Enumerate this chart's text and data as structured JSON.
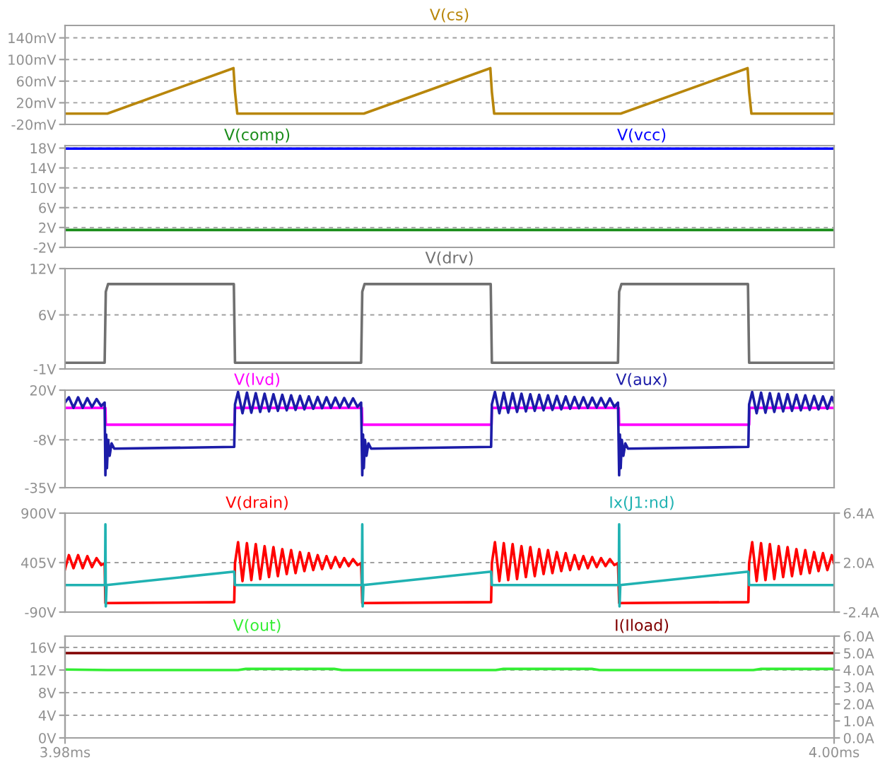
{
  "chart_data": [
    {
      "type": "line",
      "legend": "top",
      "grid": "y",
      "tick_labels": "y",
      "xlim": [
        3.98,
        4.0
      ],
      "ylim": [
        -20,
        163
      ],
      "yticks": [
        {
          "value": -20,
          "label": "-20mV"
        },
        {
          "value": 20,
          "label": "20mV"
        },
        {
          "value": 60,
          "label": "60mV"
        },
        {
          "value": 100,
          "label": "100mV"
        },
        {
          "value": 140,
          "label": "140mV"
        }
      ],
      "series": [
        {
          "name": "V(cs)",
          "color": "#b8860b",
          "x": [
            3.98,
            3.9811,
            3.98438,
            3.98442,
            3.98448,
            3.98777,
            3.99106,
            3.9911,
            3.99116,
            3.99445,
            3.99775,
            3.99779,
            3.99785,
            4.0
          ],
          "values": [
            0,
            0,
            84,
            40,
            0,
            0,
            84,
            40,
            0,
            0,
            84,
            40,
            0,
            0
          ]
        }
      ]
    },
    {
      "type": "line",
      "legend": "top",
      "grid": "y",
      "tick_labels": "y",
      "xlim": [
        3.98,
        4.0
      ],
      "ylim": [
        -2,
        18.5
      ],
      "yticks": [
        {
          "value": -2,
          "label": "-2V"
        },
        {
          "value": 2,
          "label": "2V"
        },
        {
          "value": 6,
          "label": "6V"
        },
        {
          "value": 10,
          "label": "10V"
        },
        {
          "value": 14,
          "label": "14V"
        },
        {
          "value": 18,
          "label": "18V"
        }
      ],
      "series": [
        {
          "name": "V(comp)",
          "color": "#1a8c1a",
          "x": [
            3.98,
            4.0
          ],
          "values": [
            1.5,
            1.5
          ]
        },
        {
          "name": "V(vcc)",
          "color": "#0000ff",
          "x": [
            3.98,
            4.0
          ],
          "values": [
            17.9,
            17.9
          ]
        }
      ]
    },
    {
      "type": "line",
      "legend": "top",
      "grid": "y",
      "tick_labels": "y",
      "xlim": [
        3.98,
        4.0
      ],
      "ylim": [
        -1,
        12
      ],
      "yticks": [
        {
          "value": -1,
          "label": "-1V"
        },
        {
          "value": 6,
          "label": "6V"
        },
        {
          "value": 12,
          "label": "12V"
        }
      ],
      "series": [
        {
          "name": "V(drv)",
          "color": "#707070",
          "x": [
            3.98,
            3.98103,
            3.98106,
            3.98112,
            3.98439,
            3.98442,
            3.9877,
            3.98773,
            3.98779,
            3.99107,
            3.9911,
            3.99438,
            3.99441,
            3.99447,
            3.99776,
            3.99779,
            4.0
          ],
          "values": [
            -0.2,
            -0.2,
            9,
            10,
            10,
            -0.2,
            -0.2,
            9,
            10,
            10,
            -0.2,
            -0.2,
            9,
            10,
            10,
            -0.2,
            -0.2
          ]
        }
      ]
    },
    {
      "type": "line",
      "legend": "top",
      "grid": "y",
      "tick_labels": "y",
      "xlim": [
        3.98,
        4.0
      ],
      "ylim": [
        -35,
        20
      ],
      "yticks": [
        {
          "value": -35,
          "label": "-35V"
        },
        {
          "value": -8,
          "label": "-8V"
        },
        {
          "value": 20,
          "label": "20V"
        }
      ],
      "series": [
        {
          "name": "V(lvd)",
          "color": "#ff00ff",
          "x": [
            3.98,
            3.98105,
            3.98106,
            3.98441,
            3.98442,
            3.98772,
            3.98773,
            3.99109,
            3.9911,
            3.9944,
            3.99441,
            3.99779,
            3.9978,
            4.0
          ],
          "values": [
            10,
            10,
            0.5,
            0.5,
            10,
            10,
            0.5,
            0.5,
            10,
            10,
            0.5,
            0.5,
            10,
            10
          ]
        },
        {
          "name": "V(aux)",
          "color": "#1c1ca8",
          "x": [
            3.98,
            3.9801,
            3.98022,
            3.98034,
            3.98046,
            3.98058,
            3.9807,
            3.98082,
            3.98094,
            3.98103,
            3.98105,
            3.98107,
            3.98109,
            3.98112,
            3.98116,
            3.98121,
            3.98128,
            3.9844,
            3.98442,
            3.9845,
            3.984615,
            3.98473,
            3.984845,
            3.98496,
            3.985075,
            3.98519,
            3.985305,
            3.98542,
            3.985535,
            3.98565,
            3.985765,
            3.98588,
            3.985995,
            3.98611,
            3.986225,
            3.98634,
            3.986455,
            3.98657,
            3.986685,
            3.9868,
            3.986915,
            3.98703,
            3.987145,
            3.98726,
            3.987375,
            3.98749,
            3.987605,
            3.9877,
            3.98773,
            3.98775,
            3.98777,
            3.9878,
            3.98784,
            3.98789,
            3.98796,
            3.99108,
            3.9911,
            3.99118,
            3.991295,
            3.99141,
            3.991525,
            3.99164,
            3.991755,
            3.99187,
            3.991985,
            3.9921,
            3.992215,
            3.99233,
            3.992445,
            3.99256,
            3.992675,
            3.99279,
            3.992905,
            3.99302,
            3.993135,
            3.99325,
            3.993365,
            3.99348,
            3.993595,
            3.99371,
            3.993825,
            3.99394,
            3.994055,
            3.99417,
            3.994285,
            3.99438,
            3.99441,
            3.99443,
            3.99445,
            3.99448,
            3.99452,
            3.99457,
            3.99464,
            3.99777,
            3.99779,
            3.99787,
            3.997985,
            3.9981,
            3.998215,
            3.99833,
            3.998445,
            3.99856,
            3.998675,
            3.99879,
            3.998905,
            3.99902,
            3.999135,
            3.99925,
            3.999365,
            3.99948,
            3.999595,
            3.99971,
            3.999825,
            3.99994,
            4.0
          ],
          "values": [
            13,
            16,
            10,
            16,
            10,
            15.5,
            10.5,
            15,
            11,
            13,
            -28,
            -5,
            -24,
            -8,
            -17,
            -10,
            -13,
            -12,
            12,
            19,
            7,
            18.6,
            7.3,
            18.3,
            7.7,
            18,
            8,
            17.7,
            8.3,
            17.4,
            8.6,
            17.1,
            8.9,
            16.8,
            9.2,
            16.5,
            9.5,
            16.2,
            9.8,
            16,
            10,
            15.8,
            10.2,
            15.6,
            10.4,
            15.4,
            10.6,
            13,
            -28,
            -5,
            -24,
            -8,
            -17,
            -10,
            -13,
            -12,
            12,
            19,
            7,
            18.6,
            7.3,
            18.3,
            7.7,
            18,
            8,
            17.7,
            8.3,
            17.4,
            8.6,
            17.1,
            8.9,
            16.8,
            9.2,
            16.5,
            9.5,
            16.2,
            9.8,
            16,
            10,
            15.8,
            10.2,
            15.6,
            10.4,
            15.4,
            10.6,
            13,
            -28,
            -5,
            -24,
            -8,
            -17,
            -10,
            -13,
            -12,
            12,
            19,
            7,
            18.6,
            7.3,
            18.3,
            7.7,
            18,
            8,
            17.7,
            8.3,
            17.4,
            8.6,
            17.1,
            8.9,
            16.8,
            9.2,
            16.5,
            9.5,
            16.2,
            13
          ]
        }
      ]
    },
    {
      "type": "line",
      "legend": "top",
      "grid": "y",
      "tick_labels": "y",
      "xlim": [
        3.98,
        4.0
      ],
      "ylim": [
        -90,
        900
      ],
      "yticks": [
        {
          "value": -90,
          "label": "-90V"
        },
        {
          "value": 405,
          "label": "405V"
        },
        {
          "value": 900,
          "label": "900V"
        }
      ],
      "y2lim": [
        -2.4,
        6.4
      ],
      "y2ticks": [
        {
          "value": -2.4,
          "label": "-2.4A"
        },
        {
          "value": 2.0,
          "label": "2.0A"
        },
        {
          "value": 6.4,
          "label": "6.4A"
        }
      ],
      "series": [
        {
          "name": "V(drain)",
          "color": "#ff0000",
          "x": [
            3.98,
            3.9801,
            3.98022,
            3.98034,
            3.98046,
            3.98058,
            3.9807,
            3.98082,
            3.98094,
            3.98103,
            3.98105,
            3.9844,
            3.98442,
            3.9845,
            3.984615,
            3.98473,
            3.984845,
            3.98496,
            3.985075,
            3.98519,
            3.985305,
            3.98542,
            3.985535,
            3.98565,
            3.985765,
            3.98588,
            3.985995,
            3.98611,
            3.986225,
            3.98634,
            3.986455,
            3.98657,
            3.986685,
            3.9868,
            3.986915,
            3.98703,
            3.987145,
            3.98726,
            3.987375,
            3.98749,
            3.987605,
            3.9877,
            3.98773,
            3.99108,
            3.9911,
            3.99118,
            3.991295,
            3.99141,
            3.991525,
            3.99164,
            3.991755,
            3.99187,
            3.991985,
            3.9921,
            3.992215,
            3.99233,
            3.992445,
            3.99256,
            3.992675,
            3.99279,
            3.992905,
            3.99302,
            3.993135,
            3.99325,
            3.993365,
            3.99348,
            3.993595,
            3.99371,
            3.993825,
            3.99394,
            3.994055,
            3.99417,
            3.994285,
            3.99438,
            3.99441,
            3.99777,
            3.99779,
            3.99787,
            3.997985,
            3.9981,
            3.998215,
            3.99833,
            3.998445,
            3.99856,
            3.998675,
            3.99879,
            3.998905,
            3.99902,
            3.999135,
            3.99925,
            3.999365,
            3.99948,
            3.999595,
            3.99971,
            3.999825,
            3.99994,
            4.0
          ],
          "values": [
            340,
            480,
            350,
            480,
            350,
            470,
            360,
            450,
            380,
            400,
            0,
            10,
            400,
            610,
            220,
            600,
            230,
            590,
            240,
            570,
            260,
            560,
            270,
            540,
            290,
            530,
            300,
            510,
            320,
            500,
            330,
            480,
            340,
            470,
            350,
            460,
            360,
            450,
            370,
            440,
            380,
            400,
            0,
            10,
            400,
            610,
            220,
            600,
            230,
            590,
            240,
            570,
            260,
            560,
            270,
            540,
            290,
            530,
            300,
            510,
            320,
            500,
            330,
            480,
            340,
            470,
            350,
            460,
            360,
            450,
            370,
            440,
            380,
            400,
            0,
            10,
            400,
            610,
            220,
            600,
            230,
            590,
            240,
            570,
            260,
            560,
            270,
            540,
            290,
            530,
            300,
            510,
            320,
            500,
            330,
            480,
            400
          ]
        },
        {
          "name": "Ix(J1:nd)",
          "color": "#20b2b2",
          "axis": "y2",
          "x": [
            3.98,
            3.98104,
            3.98105,
            3.98106,
            3.98108,
            3.9844,
            3.98442,
            3.98772,
            3.98773,
            3.98774,
            3.98776,
            3.99108,
            3.9911,
            3.9944,
            3.99441,
            3.99442,
            3.99444,
            3.99777,
            3.99779,
            4.0
          ],
          "values": [
            0,
            0,
            5.4,
            -1.9,
            0,
            1.2,
            0,
            0,
            5.4,
            -1.9,
            0,
            1.2,
            0,
            0,
            5.4,
            -1.9,
            0,
            1.2,
            0,
            0
          ]
        }
      ]
    },
    {
      "type": "line",
      "legend": "top",
      "grid": "y",
      "xlim": [
        3.98,
        4.0
      ],
      "xticks": [
        {
          "value": 3.98,
          "label": "3.98ms"
        },
        {
          "value": 4.0,
          "label": "4.00ms"
        }
      ],
      "ylim": [
        0,
        18
      ],
      "yticks": [
        {
          "value": 0,
          "label": "0V"
        },
        {
          "value": 4,
          "label": "4V"
        },
        {
          "value": 8,
          "label": "8V"
        },
        {
          "value": 12,
          "label": "12V"
        },
        {
          "value": 16,
          "label": "16V"
        }
      ],
      "y2lim": [
        0,
        6
      ],
      "y2ticks": [
        {
          "value": 0,
          "label": "0.0A"
        },
        {
          "value": 1,
          "label": "1.0A"
        },
        {
          "value": 2,
          "label": "2.0A"
        },
        {
          "value": 3,
          "label": "3.0A"
        },
        {
          "value": 4,
          "label": "4.0A"
        },
        {
          "value": 5,
          "label": "5.0A"
        },
        {
          "value": 6,
          "label": "6.0A"
        }
      ],
      "series": [
        {
          "name": "V(out)",
          "color": "#33ee33",
          "x": [
            3.98,
            3.9811,
            3.9845,
            3.9847,
            3.987,
            3.9872,
            3.9912,
            3.9914,
            3.9937,
            3.9939,
            3.9979,
            3.9981,
            4.0
          ],
          "values": [
            12.1,
            12.0,
            12.0,
            12.2,
            12.2,
            12.0,
            12.0,
            12.2,
            12.2,
            12.0,
            12.0,
            12.2,
            12.2
          ]
        },
        {
          "name": "I(Iload)",
          "color": "#800000",
          "axis": "y2",
          "x": [
            3.98,
            4.0
          ],
          "values": [
            5.0,
            5.0
          ]
        }
      ]
    }
  ]
}
